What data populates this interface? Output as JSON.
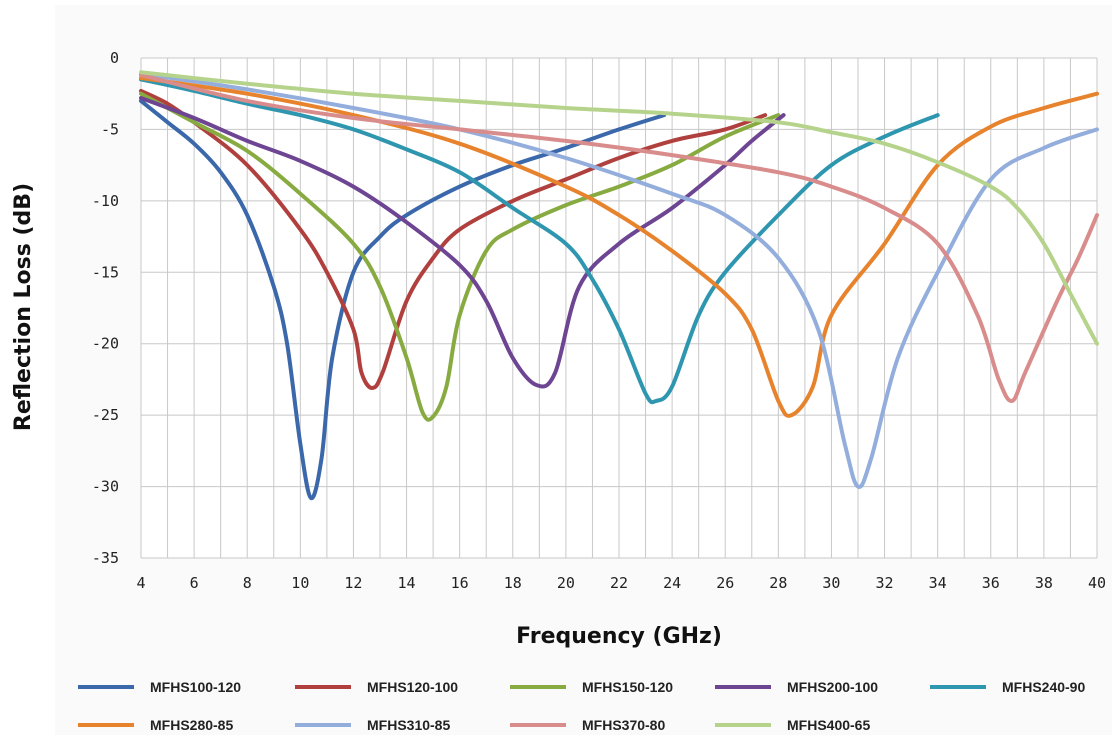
{
  "chart_data": {
    "type": "line",
    "title": "",
    "xlabel": "Frequency (GHz)",
    "ylabel": "Reflection Loss (dB)",
    "xlim": [
      4,
      40
    ],
    "ylim": [
      -35,
      0
    ],
    "xticks": [
      4,
      6,
      8,
      10,
      12,
      14,
      16,
      18,
      20,
      22,
      24,
      26,
      28,
      30,
      32,
      34,
      36,
      38,
      40
    ],
    "yticks": [
      0,
      -5,
      -10,
      -15,
      -20,
      -25,
      -30,
      -35
    ],
    "grid": true,
    "legend_position": "bottom",
    "series": [
      {
        "name": "MFHS100-120",
        "color": "#3a68aa",
        "points": [
          [
            4,
            -3
          ],
          [
            5,
            -4.5
          ],
          [
            6,
            -6
          ],
          [
            7,
            -8
          ],
          [
            8,
            -11
          ],
          [
            9,
            -16
          ],
          [
            9.5,
            -20
          ],
          [
            10,
            -27
          ],
          [
            10.4,
            -30.8
          ],
          [
            10.8,
            -28
          ],
          [
            11.2,
            -21
          ],
          [
            12,
            -15
          ],
          [
            13,
            -12.5
          ],
          [
            14,
            -11
          ],
          [
            16,
            -9
          ],
          [
            18,
            -7.5
          ],
          [
            20,
            -6.3
          ],
          [
            22,
            -5
          ],
          [
            23.7,
            -4
          ]
        ]
      },
      {
        "name": "MFHS120-100",
        "color": "#b0403e",
        "points": [
          [
            4,
            -2.3
          ],
          [
            5,
            -3.2
          ],
          [
            6,
            -4.5
          ],
          [
            8,
            -7.5
          ],
          [
            10,
            -12
          ],
          [
            11,
            -15
          ],
          [
            12,
            -19
          ],
          [
            12.3,
            -22
          ],
          [
            12.7,
            -23.1
          ],
          [
            13.1,
            -22
          ],
          [
            14,
            -17
          ],
          [
            15,
            -14
          ],
          [
            16,
            -12
          ],
          [
            18,
            -10
          ],
          [
            20,
            -8.5
          ],
          [
            22,
            -7
          ],
          [
            24,
            -5.8
          ],
          [
            26,
            -5
          ],
          [
            27.5,
            -4
          ]
        ]
      },
      {
        "name": "MFHS150-120",
        "color": "#88ab41",
        "points": [
          [
            4,
            -2.5
          ],
          [
            6,
            -4.5
          ],
          [
            8,
            -6.5
          ],
          [
            10,
            -9.5
          ],
          [
            12,
            -13
          ],
          [
            13,
            -16
          ],
          [
            14,
            -21
          ],
          [
            14.6,
            -24.8
          ],
          [
            15,
            -25.1
          ],
          [
            15.5,
            -23
          ],
          [
            16,
            -18
          ],
          [
            17,
            -13.5
          ],
          [
            18,
            -12
          ],
          [
            20,
            -10.3
          ],
          [
            22,
            -9
          ],
          [
            24,
            -7.5
          ],
          [
            26,
            -5.5
          ],
          [
            28,
            -4
          ]
        ]
      },
      {
        "name": "MFHS200-100",
        "color": "#6d4592",
        "points": [
          [
            4,
            -2.8
          ],
          [
            6,
            -4.2
          ],
          [
            8,
            -5.8
          ],
          [
            10,
            -7.2
          ],
          [
            12,
            -9
          ],
          [
            14,
            -11.5
          ],
          [
            16,
            -14.5
          ],
          [
            17,
            -17
          ],
          [
            18,
            -21
          ],
          [
            18.9,
            -22.9
          ],
          [
            19.6,
            -22
          ],
          [
            20.5,
            -16
          ],
          [
            22,
            -13
          ],
          [
            24,
            -10.5
          ],
          [
            26,
            -7.5
          ],
          [
            27,
            -5.8
          ],
          [
            28.2,
            -4
          ]
        ]
      },
      {
        "name": "MFHS240-90",
        "color": "#2f96b0",
        "points": [
          [
            4,
            -1.5
          ],
          [
            6,
            -2.3
          ],
          [
            8,
            -3.2
          ],
          [
            10,
            -4
          ],
          [
            12,
            -5
          ],
          [
            14,
            -6.4
          ],
          [
            16,
            -8
          ],
          [
            18,
            -10.5
          ],
          [
            20,
            -13
          ],
          [
            21,
            -15.5
          ],
          [
            22,
            -19
          ],
          [
            23,
            -23.5
          ],
          [
            23.4,
            -24
          ],
          [
            24,
            -23
          ],
          [
            25,
            -18
          ],
          [
            26,
            -15
          ],
          [
            28,
            -11
          ],
          [
            30,
            -7.5
          ],
          [
            32,
            -5.5
          ],
          [
            34,
            -4
          ]
        ]
      },
      {
        "name": "MFHS280-85",
        "color": "#e8832d",
        "points": [
          [
            4,
            -1.4
          ],
          [
            8,
            -2.5
          ],
          [
            12,
            -4
          ],
          [
            16,
            -6
          ],
          [
            20,
            -9
          ],
          [
            22,
            -11
          ],
          [
            24,
            -13.5
          ],
          [
            26,
            -16.5
          ],
          [
            27,
            -19
          ],
          [
            28,
            -24
          ],
          [
            28.5,
            -25
          ],
          [
            29.3,
            -23
          ],
          [
            30,
            -18
          ],
          [
            32,
            -13
          ],
          [
            34,
            -7.5
          ],
          [
            36,
            -4.8
          ],
          [
            38,
            -3.5
          ],
          [
            40,
            -2.5
          ]
        ]
      },
      {
        "name": "MFHS310-85",
        "color": "#93aedc",
        "points": [
          [
            4,
            -1.1
          ],
          [
            8,
            -2.2
          ],
          [
            12,
            -3.5
          ],
          [
            16,
            -5
          ],
          [
            20,
            -7
          ],
          [
            24,
            -9.5
          ],
          [
            26,
            -11
          ],
          [
            28,
            -14
          ],
          [
            29.5,
            -19
          ],
          [
            30.5,
            -27
          ],
          [
            31,
            -30
          ],
          [
            31.5,
            -28
          ],
          [
            32.5,
            -21
          ],
          [
            34,
            -15
          ],
          [
            36,
            -8.5
          ],
          [
            38,
            -6.3
          ],
          [
            40,
            -5
          ]
        ]
      },
      {
        "name": "MFHS370-80",
        "color": "#d98c8c",
        "points": [
          [
            4,
            -1.2
          ],
          [
            8,
            -3
          ],
          [
            12,
            -4.2
          ],
          [
            16,
            -5
          ],
          [
            20,
            -5.8
          ],
          [
            24,
            -6.8
          ],
          [
            28,
            -8
          ],
          [
            30,
            -9
          ],
          [
            32,
            -10.5
          ],
          [
            34,
            -13
          ],
          [
            35.5,
            -18
          ],
          [
            36.3,
            -22.5
          ],
          [
            36.8,
            -24
          ],
          [
            37.3,
            -22
          ],
          [
            38.5,
            -17
          ],
          [
            39.3,
            -14
          ],
          [
            40,
            -11
          ]
        ]
      },
      {
        "name": "MFHS400-65",
        "color": "#b6d38c",
        "points": [
          [
            4,
            -1
          ],
          [
            8,
            -1.8
          ],
          [
            12,
            -2.5
          ],
          [
            16,
            -3
          ],
          [
            20,
            -3.5
          ],
          [
            24,
            -3.9
          ],
          [
            28,
            -4.5
          ],
          [
            30,
            -5.2
          ],
          [
            32,
            -6
          ],
          [
            34,
            -7.3
          ],
          [
            36,
            -9
          ],
          [
            37,
            -10.5
          ],
          [
            38,
            -13
          ],
          [
            39,
            -16.5
          ],
          [
            40,
            -20
          ]
        ]
      }
    ]
  }
}
